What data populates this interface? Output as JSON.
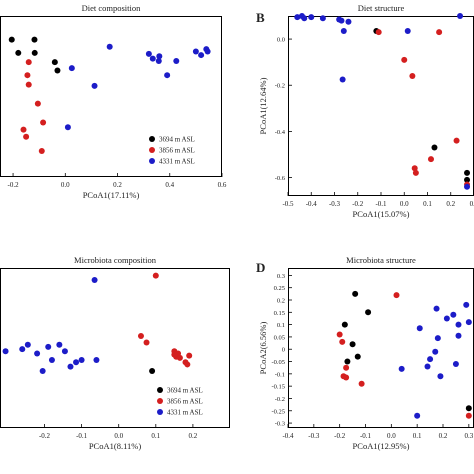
{
  "colors": {
    "black": "#000000",
    "red": "#d41f1f",
    "blue": "#1c1cc8"
  },
  "chart_data": [
    {
      "type": "scatter",
      "panel_letter": "",
      "title": "Diet composition",
      "xlabel": "PCoA1(17.11%)",
      "ylabel": "",
      "xlim": [
        -0.25,
        0.6
      ],
      "ylim": [
        -0.46,
        0.22
      ],
      "xticks": [
        -0.2,
        0,
        0.2,
        0.4,
        0.6
      ],
      "xtick_labels": [
        "-0.2",
        "0.0",
        "0.2",
        "0.4",
        "0.6"
      ],
      "yticks": [],
      "ytick_labels": [],
      "legend": [
        "3694 m ASL",
        "3856 m ASL",
        "4331 m ASL"
      ],
      "legend_position": "bottom-right",
      "series": [
        {
          "name": "3694 m ASL",
          "color": "black",
          "points": [
            [
              -0.205,
              0.12
            ],
            [
              -0.18,
              0.064
            ],
            [
              -0.118,
              0.12
            ],
            [
              -0.117,
              0.064
            ],
            [
              -0.04,
              0.025
            ],
            [
              -0.03,
              -0.01
            ]
          ]
        },
        {
          "name": "3856 m ASL",
          "color": "red",
          "points": [
            [
              -0.145,
              -0.03
            ],
            [
              -0.14,
              0.025
            ],
            [
              -0.14,
              -0.07
            ],
            [
              -0.105,
              -0.15
            ],
            [
              -0.16,
              -0.26
            ],
            [
              -0.15,
              -0.29
            ],
            [
              -0.085,
              -0.23
            ],
            [
              -0.09,
              -0.35
            ]
          ]
        },
        {
          "name": "4331 m ASL",
          "color": "blue",
          "points": [
            [
              0.025,
              0.0
            ],
            [
              0.17,
              0.09
            ],
            [
              0.32,
              0.06
            ],
            [
              0.335,
              0.04
            ],
            [
              0.358,
              0.03
            ],
            [
              0.36,
              0.05
            ],
            [
              0.39,
              -0.03
            ],
            [
              0.425,
              0.03
            ],
            [
              0.5,
              0.07
            ],
            [
              0.52,
              0.055
            ],
            [
              0.54,
              0.08
            ],
            [
              0.545,
              0.07
            ],
            [
              0.112,
              -0.075
            ],
            [
              0.01,
              -0.25
            ]
          ]
        }
      ]
    },
    {
      "type": "scatter",
      "panel_letter": "B",
      "title": "Diet structure",
      "xlabel": "PCoA1(15.07%)",
      "ylabel": "PCoA1(12.64%)",
      "xlim": [
        -0.5,
        0.3
      ],
      "ylim": [
        -0.68,
        0.1
      ],
      "xticks": [
        -0.5,
        -0.4,
        -0.3,
        -0.2,
        -0.1,
        0,
        0.1,
        0.2,
        0.3
      ],
      "xtick_labels": [
        "-0.5",
        "-0.4",
        "-0.3",
        "-0.2",
        "-0.1",
        "0.0",
        "0.1",
        "0.2",
        "0.3"
      ],
      "yticks": [
        0,
        -0.2,
        -0.4,
        -0.6
      ],
      "ytick_labels": [
        "0.0",
        "-0.2",
        "-0.4",
        "-0.6"
      ],
      "legend": [],
      "legend_position": "",
      "series": [
        {
          "name": "3694 m ASL",
          "color": "black",
          "points": [
            [
              -0.12,
              0.035
            ],
            [
              0.13,
              -0.47
            ],
            [
              0.27,
              -0.58
            ],
            [
              0.27,
              -0.61
            ]
          ]
        },
        {
          "name": "3856 m ASL",
          "color": "red",
          "points": [
            [
              -0.11,
              0.03
            ],
            [
              0.0,
              -0.09
            ],
            [
              0.035,
              -0.16
            ],
            [
              0.15,
              0.03
            ],
            [
              0.115,
              -0.52
            ],
            [
              0.045,
              -0.56
            ],
            [
              0.05,
              -0.58
            ],
            [
              0.225,
              -0.44
            ],
            [
              0.27,
              -0.63
            ]
          ]
        },
        {
          "name": "4331 m ASL",
          "color": "blue",
          "points": [
            [
              -0.46,
              0.095
            ],
            [
              -0.44,
              0.1
            ],
            [
              -0.43,
              0.09
            ],
            [
              -0.4,
              0.095
            ],
            [
              -0.35,
              0.09
            ],
            [
              -0.28,
              0.085
            ],
            [
              -0.27,
              0.08
            ],
            [
              -0.24,
              0.075
            ],
            [
              -0.26,
              0.035
            ],
            [
              -0.265,
              -0.175
            ],
            [
              0.015,
              0.035
            ],
            [
              0.24,
              0.1
            ],
            [
              0.27,
              -0.64
            ]
          ]
        }
      ]
    },
    {
      "type": "scatter",
      "panel_letter": "",
      "title": "Microbiota composition",
      "xlabel": "PCoA1(8.11%)",
      "ylabel": "",
      "xlim": [
        -0.32,
        0.3
      ],
      "ylim": [
        -0.48,
        0.25
      ],
      "xticks": [
        -0.2,
        -0.1,
        0,
        0.1,
        0.2
      ],
      "xtick_labels": [
        "-0.2",
        "-0.1",
        "0.0",
        "0.1",
        "0.2"
      ],
      "yticks": [],
      "ytick_labels": [],
      "legend": [
        "3694 m ASL",
        "3856 m ASL",
        "4331 m ASL"
      ],
      "legend_position": "bottom-right",
      "series": [
        {
          "name": "3694 m ASL",
          "color": "black",
          "points": [
            [
              0.09,
              -0.22
            ]
          ]
        },
        {
          "name": "3856 m ASL",
          "color": "red",
          "points": [
            [
              0.1,
              0.215
            ],
            [
              0.06,
              -0.06
            ],
            [
              0.075,
              -0.09
            ],
            [
              0.15,
              -0.13
            ],
            [
              0.155,
              -0.155
            ],
            [
              0.16,
              -0.14
            ],
            [
              0.165,
              -0.16
            ],
            [
              0.18,
              -0.18
            ],
            [
              0.19,
              -0.15
            ],
            [
              0.185,
              -0.19
            ],
            [
              0.15,
              -0.145
            ]
          ]
        },
        {
          "name": "4331 m ASL",
          "color": "blue",
          "points": [
            [
              -0.065,
              0.195
            ],
            [
              -0.305,
              -0.13
            ],
            [
              -0.26,
              -0.12
            ],
            [
              -0.245,
              -0.1
            ],
            [
              -0.22,
              -0.14
            ],
            [
              -0.19,
              -0.11
            ],
            [
              -0.18,
              -0.17
            ],
            [
              -0.16,
              -0.1
            ],
            [
              -0.145,
              -0.13
            ],
            [
              -0.13,
              -0.2
            ],
            [
              -0.115,
              -0.18
            ],
            [
              -0.1,
              -0.17
            ],
            [
              -0.06,
              -0.17
            ],
            [
              -0.205,
              -0.22
            ]
          ]
        }
      ]
    },
    {
      "type": "scatter",
      "panel_letter": "D",
      "title": "Microbiota structure",
      "xlabel": "PCoA1(12.95%)",
      "ylabel": "PCoA2(6.56%)",
      "xlim": [
        -0.4,
        0.32
      ],
      "ylim": [
        -0.32,
        0.33
      ],
      "xticks": [
        -0.4,
        -0.3,
        -0.2,
        -0.1,
        0,
        0.1,
        0.2,
        0.3
      ],
      "xtick_labels": [
        "-0.4",
        "-0.3",
        "-0.2",
        "-0.1",
        "0.0",
        "0.1",
        "0.2",
        "0.3"
      ],
      "yticks": [
        0.3,
        0.25,
        0.2,
        0.15,
        0.1,
        0.05,
        0,
        -0.05,
        -0.1,
        -0.15,
        -0.2,
        -0.25,
        -0.3
      ],
      "ytick_labels": [
        "0.3",
        "0.25",
        "0.2",
        "0.15",
        "0.1",
        "0.05",
        "0",
        "-0.05",
        "-0.1",
        "-0.15",
        "-0.2",
        "-0.25",
        "-0.3"
      ],
      "legend": [],
      "legend_position": "",
      "series": [
        {
          "name": "3694 m ASL",
          "color": "black",
          "points": [
            [
              -0.14,
              0.225
            ],
            [
              -0.18,
              0.1
            ],
            [
              -0.09,
              0.15
            ],
            [
              -0.17,
              -0.05
            ],
            [
              -0.15,
              0.02
            ],
            [
              -0.13,
              -0.03
            ],
            [
              0.3,
              -0.24
            ]
          ]
        },
        {
          "name": "3856 m ASL",
          "color": "red",
          "points": [
            [
              0.02,
              0.22
            ],
            [
              -0.2,
              0.06
            ],
            [
              -0.19,
              0.03
            ],
            [
              -0.175,
              -0.075
            ],
            [
              -0.185,
              -0.11
            ],
            [
              -0.175,
              -0.115
            ],
            [
              -0.115,
              -0.14
            ],
            [
              0.3,
              -0.27
            ]
          ]
        },
        {
          "name": "4331 m ASL",
          "color": "blue",
          "points": [
            [
              0.175,
              0.165
            ],
            [
              0.215,
              0.125
            ],
            [
              0.24,
              0.14
            ],
            [
              0.26,
              0.1
            ],
            [
              0.29,
              0.18
            ],
            [
              0.3,
              0.11
            ],
            [
              0.11,
              0.085
            ],
            [
              0.18,
              0.045
            ],
            [
              0.15,
              -0.04
            ],
            [
              0.17,
              -0.01
            ],
            [
              0.19,
              -0.11
            ],
            [
              0.14,
              -0.07
            ],
            [
              0.25,
              -0.06
            ],
            [
              0.26,
              0.055
            ],
            [
              0.04,
              -0.08
            ],
            [
              0.1,
              -0.27
            ]
          ]
        }
      ]
    }
  ]
}
